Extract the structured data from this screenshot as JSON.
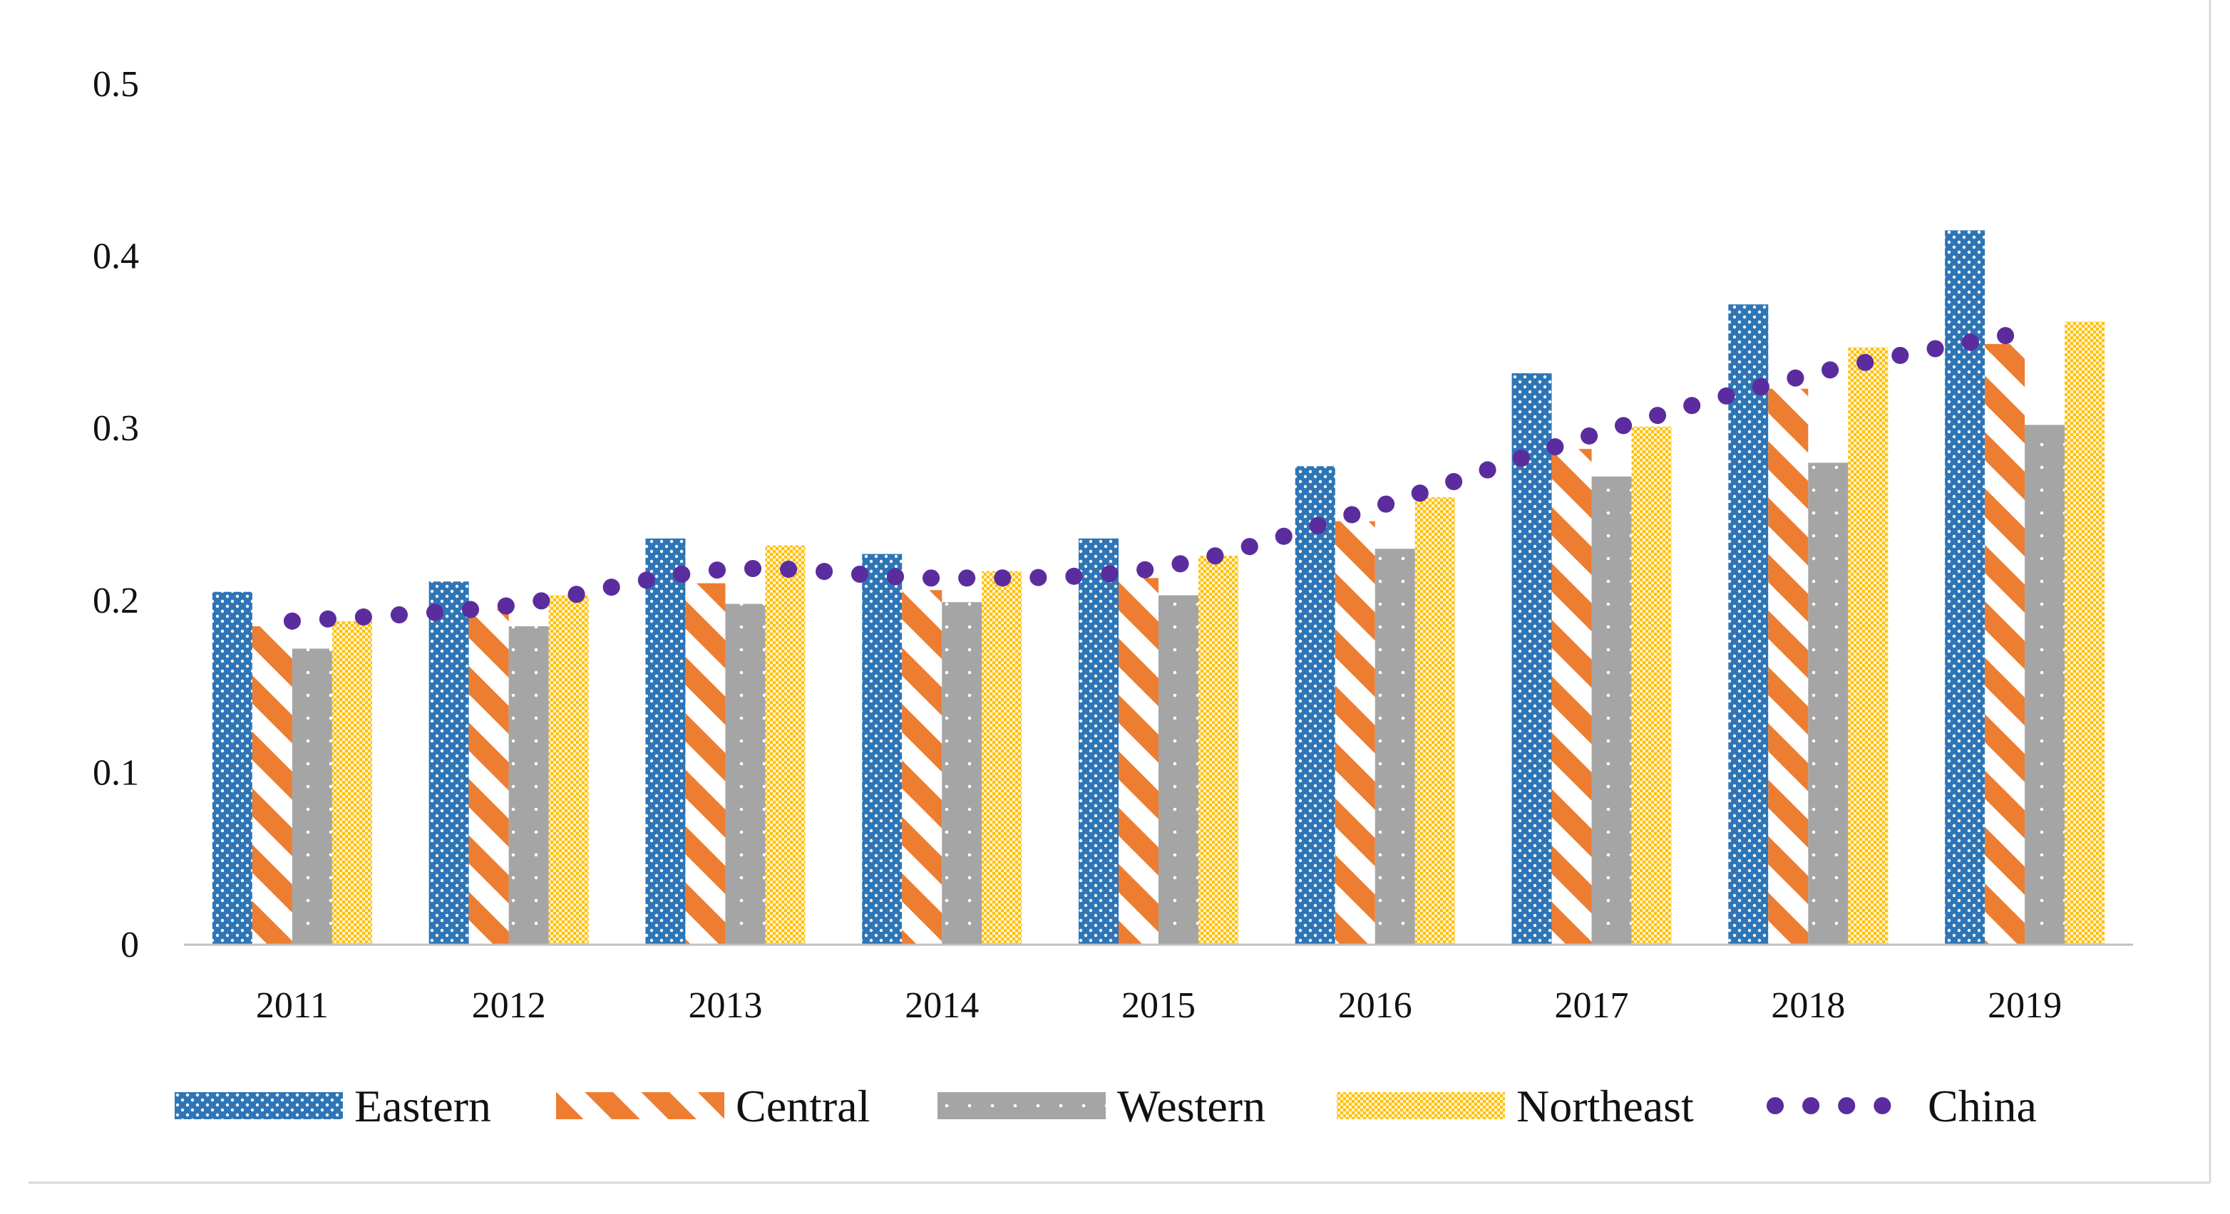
{
  "chart_data": {
    "type": "bar",
    "categories": [
      "2011",
      "2012",
      "2013",
      "2014",
      "2015",
      "2016",
      "2017",
      "2018",
      "2019"
    ],
    "series": [
      {
        "name": "Eastern",
        "type": "bar",
        "color": "#2e75b6",
        "pattern": "dots",
        "values": [
          0.205,
          0.211,
          0.236,
          0.227,
          0.236,
          0.278,
          0.332,
          0.372,
          0.415
        ]
      },
      {
        "name": "Central",
        "type": "bar",
        "color": "#ed7d31",
        "pattern": "diagonal-stripes",
        "values": [
          0.185,
          0.195,
          0.21,
          0.206,
          0.213,
          0.246,
          0.288,
          0.323,
          0.349
        ]
      },
      {
        "name": "Western",
        "type": "bar",
        "color": "#a5a5a5",
        "pattern": "dots",
        "values": [
          0.172,
          0.185,
          0.198,
          0.199,
          0.203,
          0.23,
          0.272,
          0.28,
          0.302
        ]
      },
      {
        "name": "Northeast",
        "type": "bar",
        "color": "#ffc000",
        "pattern": "checker",
        "values": [
          0.188,
          0.203,
          0.232,
          0.217,
          0.226,
          0.26,
          0.301,
          0.347,
          0.362
        ]
      },
      {
        "name": "China",
        "type": "line",
        "style": "dotted",
        "color": "#5b2c9e",
        "values": [
          0.188,
          0.197,
          0.218,
          0.213,
          0.219,
          0.254,
          0.296,
          0.331,
          0.356
        ]
      }
    ],
    "ylim": [
      0,
      0.5
    ],
    "yticks": [
      "0",
      "0.1",
      "0.2",
      "0.3",
      "0.4",
      "0.5"
    ],
    "title": "",
    "xlabel": "",
    "ylabel": "",
    "grid": false,
    "legend_position": "bottom"
  }
}
